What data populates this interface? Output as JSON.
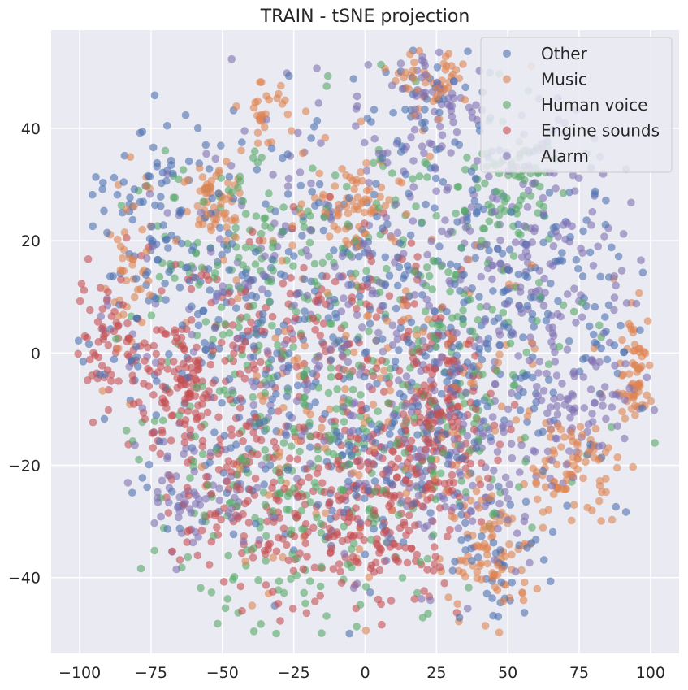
{
  "chart_data": {
    "type": "scatter",
    "title": "TRAIN - tSNE projection",
    "xlabel": "",
    "ylabel": "",
    "xlim": [
      -110,
      110
    ],
    "ylim": [
      -53.5,
      57.5
    ],
    "xticks": [
      -100,
      -75,
      -50,
      -25,
      0,
      25,
      50,
      75,
      100
    ],
    "xtick_labels": [
      "−100",
      "−75",
      "−50",
      "−25",
      "0",
      "25",
      "50",
      "75",
      "100"
    ],
    "yticks": [
      -40,
      -20,
      0,
      20,
      40
    ],
    "ytick_labels": [
      "−40",
      "−20",
      "0",
      "20",
      "40"
    ],
    "grid": true,
    "legend_position": "top-right",
    "series": [
      {
        "name": "Other",
        "color": "#4c72b0",
        "clusters": [
          {
            "cx": -40,
            "cy": 5,
            "sx": 30,
            "sy": 18,
            "n": 260
          },
          {
            "cx": 10,
            "cy": -5,
            "sx": 30,
            "sy": 20,
            "n": 240
          },
          {
            "cx": 55,
            "cy": 8,
            "sx": 20,
            "sy": 15,
            "n": 160
          },
          {
            "cx": -75,
            "cy": 25,
            "sx": 12,
            "sy": 10,
            "n": 60
          },
          {
            "cx": 48,
            "cy": -40,
            "sx": 8,
            "sy": 5,
            "n": 30
          },
          {
            "cx": 20,
            "cy": 45,
            "sx": 10,
            "sy": 5,
            "n": 30
          }
        ]
      },
      {
        "name": "Music",
        "color": "#dd8452",
        "clusters": [
          {
            "cx": -52,
            "cy": 27,
            "sx": 6,
            "sy": 4,
            "n": 60
          },
          {
            "cx": -5,
            "cy": 27,
            "sx": 8,
            "sy": 4,
            "n": 70
          },
          {
            "cx": 95,
            "cy": -3,
            "sx": 3,
            "sy": 5,
            "n": 60
          },
          {
            "cx": 45,
            "cy": -37,
            "sx": 7,
            "sy": 5,
            "n": 70
          },
          {
            "cx": 25,
            "cy": 48,
            "sx": 6,
            "sy": 3,
            "n": 50
          },
          {
            "cx": 72,
            "cy": -20,
            "sx": 8,
            "sy": 4,
            "n": 70
          },
          {
            "cx": -82,
            "cy": 15,
            "sx": 4,
            "sy": 8,
            "n": 40
          },
          {
            "cx": -35,
            "cy": 42,
            "sx": 4,
            "sy": 3,
            "n": 30
          },
          {
            "cx": 10,
            "cy": -15,
            "sx": 40,
            "sy": 20,
            "n": 180
          }
        ]
      },
      {
        "name": "Human voice",
        "color": "#55a868",
        "clusters": [
          {
            "cx": -20,
            "cy": -20,
            "sx": 30,
            "sy": 15,
            "n": 250
          },
          {
            "cx": 20,
            "cy": 5,
            "sx": 30,
            "sy": 18,
            "n": 230
          },
          {
            "cx": -50,
            "cy": 20,
            "sx": 18,
            "sy": 10,
            "n": 100
          },
          {
            "cx": 50,
            "cy": 30,
            "sx": 10,
            "sy": 5,
            "n": 60
          }
        ]
      },
      {
        "name": "Engine sounds",
        "color": "#c44e52",
        "clusters": [
          {
            "cx": -60,
            "cy": -5,
            "sx": 10,
            "sy": 8,
            "n": 170
          },
          {
            "cx": 5,
            "cy": -28,
            "sx": 15,
            "sy": 10,
            "n": 210
          },
          {
            "cx": 25,
            "cy": -12,
            "sx": 10,
            "sy": 8,
            "n": 150
          },
          {
            "cx": -35,
            "cy": -25,
            "sx": 15,
            "sy": 10,
            "n": 160
          },
          {
            "cx": -90,
            "cy": 3,
            "sx": 6,
            "sy": 6,
            "n": 60
          },
          {
            "cx": -10,
            "cy": 8,
            "sx": 20,
            "sy": 8,
            "n": 110
          }
        ]
      },
      {
        "name": "Alarm",
        "color": "#8172b3",
        "clusters": [
          {
            "cx": 60,
            "cy": 15,
            "sx": 20,
            "sy": 15,
            "n": 200
          },
          {
            "cx": -20,
            "cy": 10,
            "sx": 30,
            "sy": 20,
            "n": 220
          },
          {
            "cx": 30,
            "cy": -20,
            "sx": 20,
            "sy": 10,
            "n": 150
          },
          {
            "cx": 25,
            "cy": 45,
            "sx": 8,
            "sy": 5,
            "n": 50
          },
          {
            "cx": -60,
            "cy": -25,
            "sx": 10,
            "sy": 5,
            "n": 60
          },
          {
            "cx": 75,
            "cy": -10,
            "sx": 10,
            "sy": 5,
            "n": 60
          }
        ]
      }
    ]
  }
}
